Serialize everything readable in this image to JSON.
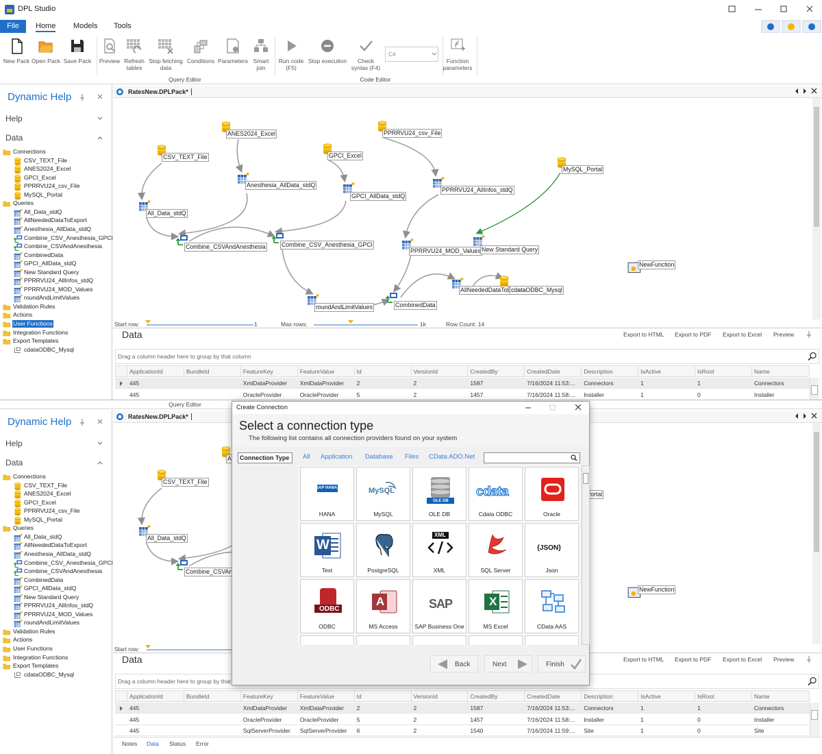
{
  "app": {
    "title": "DPL Studio",
    "menu": [
      "File",
      "Home",
      "Models",
      "Tools"
    ],
    "ribbon": {
      "buttons": [
        "New Pack",
        "Open Pack",
        "Save Pack",
        "Preview",
        "Refresh tables",
        "Stop fetching data",
        "Conditions",
        "Parameters",
        "Smart join",
        "Run code (F5)",
        "Stop execution",
        "Check syntax (F4)",
        "Function parameters"
      ],
      "language": "C#",
      "groups": [
        "Query Editor",
        "Code Editor"
      ]
    }
  },
  "left_panel": {
    "title": "Dynamic Help",
    "sections": [
      "Help",
      "Data"
    ],
    "tree": [
      {
        "label": "Connections",
        "children": [
          "CSV_TEXT_File",
          "ANES2024_Excel",
          "GPCI_Excel",
          "PPRRVU24_csv_File",
          "MySQL_Portal"
        ]
      },
      {
        "label": "Queries",
        "children": [
          "All_Data_stdQ",
          "AllNeededDataToExport",
          "Anesthesia_AllData_stdQ",
          "Combine_CSV_Anesthesia_GPCI",
          "Combine_CSVAndAnesthesia",
          "CombinedData",
          "GPCI_AllData_stdQ",
          "New Standard Query",
          "PPRRVU24_AllInfos_stdQ",
          "PPRRVU24_MOD_Values",
          "roundAndLimitValues"
        ]
      },
      {
        "label": "Validation Rules"
      },
      {
        "label": "Actions"
      },
      {
        "label": "User Functions"
      },
      {
        "label": "Integration Functions"
      },
      {
        "label": "Export Templates",
        "children": [
          "cdataODBC_Mysql"
        ]
      }
    ]
  },
  "document": {
    "tab": "RatesNew.DPLPack*",
    "nodes": [
      "ANES2024_Excel",
      "CSV_TEXT_File",
      "GPCI_Excel",
      "PPRRVU24_csv_File",
      "MySQL_Portal",
      "Anesthesia_AllData_stdQ",
      "GPCI_AllData_stdQ",
      "PPRRVU24_AllInfos_stdQ",
      "All_Data_stdQ",
      "Combine_CSVAndAnesthesia",
      "Combine_CSV_Anesthesia_GPCI",
      "PPRRVU24_MOD_Values",
      "New Standard Query",
      "NewFunction",
      "roundAndLimitValues",
      "CombinedData",
      "AllNeededDataToExport",
      "cdataODBC_Mysql"
    ]
  },
  "status_bar": {
    "start_row_label": "Start row:",
    "start_row": 1,
    "max_rows_label": "Max rows:",
    "max_rows": "1k",
    "row_count": "Row Count: 14"
  },
  "data_panel": {
    "title": "Data",
    "actions": [
      "Export to HTML",
      "Export to PDF",
      "Export to Excel",
      "Preview"
    ],
    "group_hint": "Drag a column header here to group by that column",
    "columns": [
      "ApplicationId",
      "BundleId",
      "FeatureKey",
      "FeatureValue",
      "Id",
      "VersionId",
      "CreatedBy",
      "CreatedDate",
      "Description",
      "IsActive",
      "IsRoot",
      "Name"
    ],
    "rows": [
      [
        445,
        null,
        "XmlDataProvider",
        "XmlDataProvider",
        2,
        2,
        1587,
        "7/16/2024 11:53:...",
        "Connectors",
        1,
        1,
        "Connectors"
      ],
      [
        445,
        null,
        "OracleProvider",
        "OracleProvider",
        5,
        2,
        1457,
        "7/16/2024 11:58:...",
        "Installer",
        1,
        0,
        "Installer"
      ],
      [
        445,
        null,
        "SqlServerProvider",
        "SqlServerProvider",
        6,
        2,
        1540,
        "7/16/2024 11:59:...",
        "Site",
        1,
        0,
        "Site"
      ]
    ]
  },
  "bottom_tabs": [
    "Notes",
    "Data",
    "Status",
    "Error"
  ],
  "dialog": {
    "title": "Create Connection",
    "heading": "Select a connection type",
    "subtitle": "The following list contains all connection providers found on your system",
    "type_label": "Connection Type",
    "filters": [
      "All",
      "Application",
      "Database",
      "Files",
      "CData ADO.Net"
    ],
    "tiles": [
      {
        "label": "HANA",
        "icon_text": "SAP HANA"
      },
      {
        "label": "MySQL",
        "icon_text": "MySQL"
      },
      {
        "label": "OLE DB",
        "icon_text": "OLE DB"
      },
      {
        "label": "Cdata ODBC",
        "icon_text": "cdata"
      },
      {
        "label": "Oracle"
      },
      {
        "label": "Text",
        "icon_text": "W"
      },
      {
        "label": "PostgreSQL"
      },
      {
        "label": "XML",
        "icon_text": "XML"
      },
      {
        "label": "SQL Server"
      },
      {
        "label": "Json",
        "icon_text": "{JSON}"
      },
      {
        "label": "ODBC",
        "icon_text": "ODBC"
      },
      {
        "label": "MS Access",
        "icon_text": "A"
      },
      {
        "label": "SAP Business One",
        "icon_text": "SAP"
      },
      {
        "label": "MS Excel",
        "icon_text": "X"
      },
      {
        "label": "CData AAS"
      }
    ],
    "buttons": [
      "Back",
      "Next",
      "Finish"
    ]
  }
}
